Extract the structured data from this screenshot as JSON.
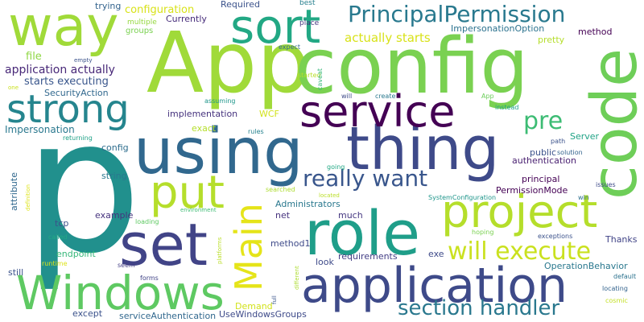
{
  "words": [
    {
      "text": "p",
      "color": "#21908d"
    },
    {
      "text": "App",
      "color": "#a0da39"
    },
    {
      "text": "config",
      "color": "#7ad151"
    },
    {
      "text": "code",
      "color": "#6ece58"
    },
    {
      "text": "using",
      "color": "#31688e"
    },
    {
      "text": "thing",
      "color": "#3e4a89"
    },
    {
      "text": "way",
      "color": "#a0da39"
    },
    {
      "text": "sort",
      "color": "#22a884"
    },
    {
      "text": "role",
      "color": "#1f9e89"
    },
    {
      "text": "set",
      "color": "#414487"
    },
    {
      "text": "application",
      "color": "#3e4a89"
    },
    {
      "text": "Windows",
      "color": "#5ec962"
    },
    {
      "text": "service",
      "color": "#440154"
    },
    {
      "text": "strong",
      "color": "#25858e"
    },
    {
      "text": "project",
      "color": "#b5de2b"
    },
    {
      "text": "put",
      "color": "#b5de2b"
    },
    {
      "text": "Main",
      "color": "#e5e419"
    },
    {
      "text": "PrincipalPermission",
      "color": "#29798e"
    },
    {
      "text": "really want",
      "color": "#39568c"
    },
    {
      "text": "will execute",
      "color": "#cae11f"
    },
    {
      "text": "section handler",
      "color": "#2a788e"
    },
    {
      "text": "pre",
      "color": "#3dbc74"
    },
    {
      "text": "actually starts",
      "color": "#d8e219"
    },
    {
      "text": "configuration",
      "color": "#d8e219"
    },
    {
      "text": "application actually",
      "color": "#482878"
    },
    {
      "text": "starts executing",
      "color": "#39568c"
    },
    {
      "text": "SecurityAction",
      "color": "#31688e"
    },
    {
      "text": "Impersonation",
      "color": "#2a788e"
    },
    {
      "text": "file",
      "color": "#8fd744"
    },
    {
      "text": "trying",
      "color": "#33638d"
    },
    {
      "text": "multiple",
      "color": "#95d840"
    },
    {
      "text": "groups",
      "color": "#7ad151"
    },
    {
      "text": "Currently",
      "color": "#472d7b"
    },
    {
      "text": "Required",
      "color": "#3b528b"
    },
    {
      "text": "best",
      "color": "#277f8e"
    },
    {
      "text": "place",
      "color": "#453781"
    },
    {
      "text": "ImpersonationOption",
      "color": "#2c728e"
    },
    {
      "text": "pretty",
      "color": "#b5de2b"
    },
    {
      "text": "method",
      "color": "#440154"
    },
    {
      "text": "started",
      "color": "#b8de29"
    },
    {
      "text": "expect",
      "color": "#31688e"
    },
    {
      "text": "caveat",
      "color": "#35b779"
    },
    {
      "text": "will",
      "color": "#3e4a89"
    },
    {
      "text": "create",
      "color": "#2a788e"
    },
    {
      "text": "App",
      "color": "#6ccd5a"
    },
    {
      "text": "instead",
      "color": "#1fa188"
    },
    {
      "text": "empty",
      "color": "#3b528b"
    },
    {
      "text": "one",
      "color": "#cae11f"
    },
    {
      "text": "assuming",
      "color": "#1f968b"
    },
    {
      "text": "implementation",
      "color": "#46337e"
    },
    {
      "text": "WCF",
      "color": "#d2e21b"
    },
    {
      "text": "exact",
      "color": "#b5de2b"
    },
    {
      "text": "rules",
      "color": "#26828e"
    },
    {
      "text": "path",
      "color": "#3b528b"
    },
    {
      "text": "Server",
      "color": "#20a386"
    },
    {
      "text": "returning",
      "color": "#1fa187"
    },
    {
      "text": "config",
      "color": "#2e6e8e"
    },
    {
      "text": "public",
      "color": "#3b528b"
    },
    {
      "text": "solution",
      "color": "#33638d"
    },
    {
      "text": "authentication",
      "color": "#481f70"
    },
    {
      "text": "going",
      "color": "#22a884"
    },
    {
      "text": "principal",
      "color": "#440154"
    },
    {
      "text": "issues",
      "color": "#3e4a89"
    },
    {
      "text": "attribute",
      "color": "#31688e"
    },
    {
      "text": "definition",
      "color": "#dde318"
    },
    {
      "text": "string",
      "color": "#2a788e"
    },
    {
      "text": "searched",
      "color": "#addc30"
    },
    {
      "text": "PermissionMode",
      "color": "#440154"
    },
    {
      "text": "located",
      "color": "#bade28"
    },
    {
      "text": "SystemConfiguration",
      "color": "#1f968b"
    },
    {
      "text": "win",
      "color": "#2d708e"
    },
    {
      "text": "Administrators",
      "color": "#2a788e"
    },
    {
      "text": "net",
      "color": "#46337e"
    },
    {
      "text": "much",
      "color": "#453781"
    },
    {
      "text": "example",
      "color": "#46337e"
    },
    {
      "text": "loading",
      "color": "#5ec962"
    },
    {
      "text": "environment",
      "color": "#3dbc74"
    },
    {
      "text": "tcp",
      "color": "#3b528b"
    },
    {
      "text": "endpoint",
      "color": "#35b779"
    },
    {
      "text": "called",
      "color": "#22a884"
    },
    {
      "text": "method1",
      "color": "#3e4a89"
    },
    {
      "text": "exe",
      "color": "#3e4a89"
    },
    {
      "text": "hoping",
      "color": "#7ad151"
    },
    {
      "text": "exceptions",
      "color": "#3b528b"
    },
    {
      "text": "Thanks",
      "color": "#414487"
    },
    {
      "text": "platforms",
      "color": "#bade28"
    },
    {
      "text": "look",
      "color": "#3e4a89"
    },
    {
      "text": "requirements",
      "color": "#433e85"
    },
    {
      "text": "OperationBehavior",
      "color": "#2a788e"
    },
    {
      "text": "default",
      "color": "#2c728e"
    },
    {
      "text": "still",
      "color": "#3b528b"
    },
    {
      "text": "seem",
      "color": "#433e85"
    },
    {
      "text": "runtime",
      "color": "#dde318"
    },
    {
      "text": "forms",
      "color": "#414487"
    },
    {
      "text": "different",
      "color": "#addc30"
    },
    {
      "text": "full",
      "color": "#39568c"
    },
    {
      "text": "locating",
      "color": "#33638d"
    },
    {
      "text": "cosmic",
      "color": "#c2df23"
    },
    {
      "text": "except",
      "color": "#3b528b"
    },
    {
      "text": "Demand",
      "color": "#d2e21b"
    },
    {
      "text": "serviceAuthentication",
      "color": "#31688e"
    },
    {
      "text": "UseWindowsGroups",
      "color": "#3e4a89"
    }
  ]
}
